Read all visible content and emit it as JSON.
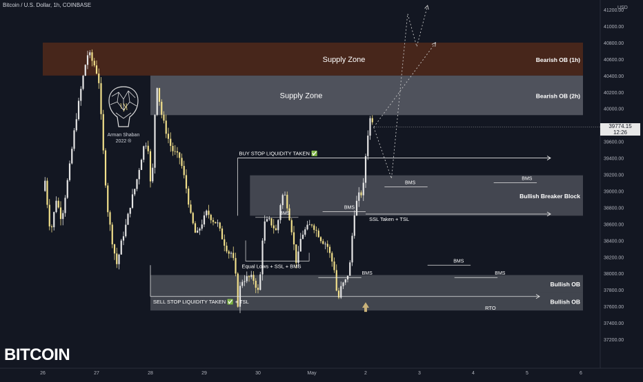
{
  "header": {
    "title": "Bitcoin / U.S. Dollar, 1h, COINBASE",
    "currency": "USD"
  },
  "watermark": "BITCOIN",
  "logo": {
    "name": "Arman Shaban",
    "year": "2022 ®"
  },
  "price_badge": {
    "price": "39774.15",
    "countdown": "12:26"
  },
  "colors": {
    "background": "#131722",
    "candle_up": "#e6e6e6",
    "candle_down": "#f2e08b",
    "supply_1h": "#4a271b",
    "supply_2h": "#5a5d66",
    "bullish_zone": "#4a4d56",
    "axis_text": "#b2b5be"
  },
  "zones": [
    {
      "label": "Supply Zone",
      "side_label": "Bearish OB (1h)",
      "top": 40800,
      "bottom": 40400,
      "from": 0.0,
      "to": 0.95,
      "kind": "supply_1h"
    },
    {
      "label": "Supply Zone",
      "side_label": "Bearish OB (2h)",
      "top": 40400,
      "bottom": 39920,
      "from": 2.0,
      "to": 4.95,
      "kind": "supply_2h"
    },
    {
      "label": "",
      "side_label": "Bullish Breaker Block",
      "top": 39190,
      "bottom": 38700,
      "from": 3.85,
      "to": 4.95,
      "kind": "breaker"
    },
    {
      "label": "",
      "side_label": "Bullish OB",
      "top": 37980,
      "bottom": 37760,
      "from": 2.0,
      "to": 4.95,
      "kind": "bullish"
    },
    {
      "label": "",
      "side_label": "Bullish OB",
      "top": 37760,
      "bottom": 37550,
      "from": 2.0,
      "to": 4.95,
      "kind": "bullish"
    }
  ],
  "annotations": {
    "buy_stop": "BUY STOP LIQUIDITY TAKEN ✅",
    "sell_stop": "SELL STOP LIQUIDITY TAKEN ✅ + TSL",
    "equal_lows": "Equal Lows + SSL + BMS",
    "ssl_taken": "SSL Taken + TSL",
    "rto": "RTO",
    "bms": [
      "BMS",
      "BMS",
      "BMS",
      "BMS",
      "BMS",
      "BMS",
      "BMS"
    ]
  },
  "chart_data": {
    "type": "candlestick",
    "title": "Bitcoin / U.S. Dollar, 1h, COINBASE",
    "x_tick_labels": [
      "26",
      "27",
      "28",
      "29",
      "30",
      "May",
      "2",
      "3",
      "4",
      "5",
      "6"
    ],
    "y_tick_labels": [
      "41200.00",
      "41000.00",
      "40800.00",
      "40600.00",
      "40400.00",
      "40200.00",
      "40000.00",
      "39800.00",
      "39600.00",
      "39400.00",
      "39200.00",
      "39000.00",
      "38800.00",
      "38600.00",
      "38400.00",
      "38200.00",
      "38000.00",
      "37800.00",
      "37600.00",
      "37400.00",
      "37200.00"
    ],
    "ylim": [
      37000,
      41250
    ],
    "last_price": 39774.15,
    "price_path": [
      [
        0.0,
        39000
      ],
      [
        0.05,
        39150
      ],
      [
        0.1,
        38700
      ],
      [
        0.15,
        38500
      ],
      [
        0.25,
        38900
      ],
      [
        0.35,
        38650
      ],
      [
        0.5,
        39300
      ],
      [
        0.6,
        39800
      ],
      [
        0.7,
        40200
      ],
      [
        0.78,
        40500
      ],
      [
        0.85,
        40700
      ],
      [
        0.9,
        40600
      ],
      [
        0.98,
        40500
      ],
      [
        1.05,
        40300
      ],
      [
        1.1,
        39700
      ],
      [
        1.2,
        38800
      ],
      [
        1.3,
        38350
      ],
      [
        1.38,
        38100
      ],
      [
        1.45,
        38350
      ],
      [
        1.55,
        38600
      ],
      [
        1.65,
        38900
      ],
      [
        1.72,
        39050
      ],
      [
        1.8,
        39300
      ],
      [
        1.88,
        39550
      ],
      [
        1.95,
        39600
      ],
      [
        2.0,
        39100
      ],
      [
        2.05,
        39300
      ],
      [
        2.08,
        39900
      ],
      [
        2.12,
        40300
      ],
      [
        2.2,
        39950
      ],
      [
        2.3,
        39700
      ],
      [
        2.4,
        39500
      ],
      [
        2.55,
        39400
      ],
      [
        2.65,
        39100
      ],
      [
        2.75,
        38700
      ],
      [
        2.85,
        38450
      ],
      [
        2.95,
        38600
      ],
      [
        3.05,
        38750
      ],
      [
        3.15,
        38650
      ],
      [
        3.25,
        38600
      ],
      [
        3.35,
        38400
      ],
      [
        3.45,
        38250
      ],
      [
        3.52,
        38250
      ],
      [
        3.58,
        38000
      ],
      [
        3.62,
        37600
      ],
      [
        3.68,
        37900
      ],
      [
        3.8,
        37950
      ],
      [
        3.9,
        37950
      ],
      [
        4.02,
        37750
      ],
      [
        4.1,
        38600
      ],
      [
        4.2,
        38650
      ],
      [
        4.35,
        38500
      ],
      [
        4.4,
        38800
      ],
      [
        4.48,
        39000
      ],
      [
        4.55,
        38800
      ],
      [
        4.62,
        38550
      ],
      [
        4.72,
        38100
      ],
      [
        4.8,
        38450
      ],
      [
        4.9,
        38550
      ],
      [
        5.0,
        38600
      ],
      [
        5.1,
        38500
      ],
      [
        5.18,
        38400
      ],
      [
        5.28,
        38350
      ],
      [
        5.35,
        38200
      ],
      [
        5.42,
        38050
      ],
      [
        5.48,
        37650
      ],
      [
        5.55,
        37850
      ],
      [
        5.62,
        37900
      ],
      [
        5.7,
        38050
      ],
      [
        5.78,
        38700
      ],
      [
        5.86,
        38950
      ],
      [
        5.9,
        38950
      ],
      [
        5.95,
        39000
      ],
      [
        6.02,
        39600
      ],
      [
        6.1,
        39950
      ],
      [
        6.15,
        39774
      ]
    ],
    "projections": [
      [
        [
          6.15,
          39774
        ],
        [
          6.48,
          39150
        ],
        [
          6.78,
          41150
        ],
        [
          6.95,
          40750
        ],
        [
          7.15,
          41250
        ]
      ],
      [
        [
          6.15,
          39774
        ],
        [
          7.3,
          40800
        ]
      ]
    ]
  }
}
